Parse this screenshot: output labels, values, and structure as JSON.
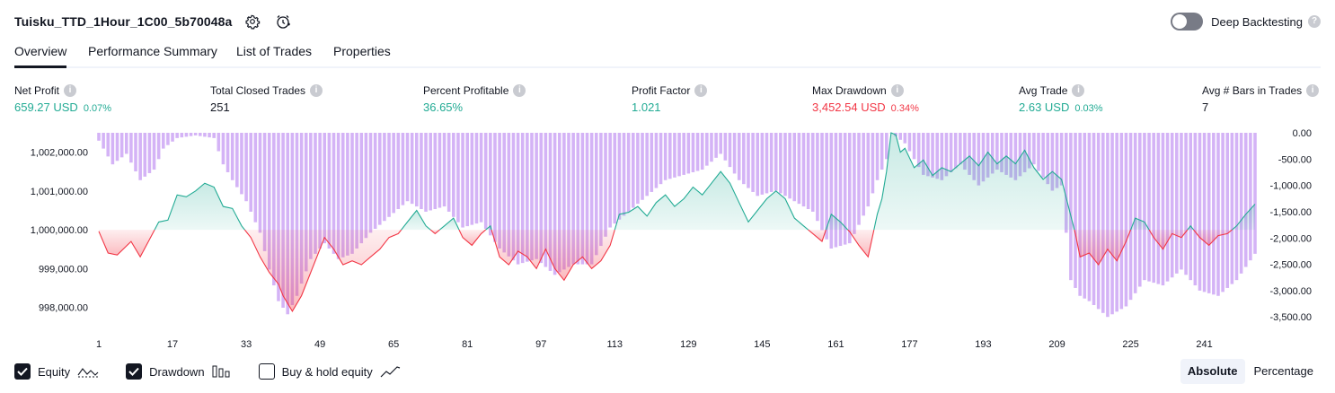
{
  "header": {
    "strategy_name": "Tuisku_TTD_1Hour_1C00_5b70048a",
    "deep_backtesting_label": "Deep Backtesting",
    "deep_backtesting_on": false,
    "icons": [
      "settings-icon",
      "alert-clock-icon",
      "help-icon"
    ]
  },
  "tabs": [
    {
      "label": "Overview",
      "active": true
    },
    {
      "label": "Performance Summary",
      "active": false
    },
    {
      "label": "List of Trades",
      "active": false
    },
    {
      "label": "Properties",
      "active": false
    }
  ],
  "metrics": [
    {
      "label": "Net Profit",
      "value": "659.27 USD",
      "pct": "0.07%",
      "color": "#22ab94"
    },
    {
      "label": "Total Closed Trades",
      "value": "251",
      "pct": "",
      "color": "#131722"
    },
    {
      "label": "Percent Profitable",
      "value": "36.65%",
      "pct": "",
      "color": "#22ab94"
    },
    {
      "label": "Profit Factor",
      "value": "1.021",
      "pct": "",
      "color": "#22ab94"
    },
    {
      "label": "Max Drawdown",
      "value": "3,452.54 USD",
      "pct": "0.34%",
      "color": "#f23645"
    },
    {
      "label": "Avg Trade",
      "value": "2.63 USD",
      "pct": "0.03%",
      "color": "#22ab94"
    },
    {
      "label": "Avg # Bars in Trades",
      "value": "7",
      "pct": "",
      "color": "#131722"
    }
  ],
  "chart_data": {
    "type": "line",
    "left_axis": {
      "ticks": [
        "1,002,000.00",
        "1,001,000.00",
        "1,000,000.00",
        "999,000.00",
        "998,000.00"
      ],
      "tick_values": [
        1002000,
        1001000,
        1000000,
        999000,
        998000
      ],
      "range": [
        997550,
        1002500
      ]
    },
    "right_axis": {
      "ticks": [
        "0.00",
        "-500.00",
        "-1,000.00",
        "-1,500.00",
        "-2,000.00",
        "-2,500.00",
        "-3,000.00",
        "-3,500.00"
      ],
      "tick_values": [
        0,
        -500,
        -1000,
        -1500,
        -2000,
        -2500,
        -3000,
        -3500
      ],
      "range": [
        -3650,
        0
      ]
    },
    "x_ticks": [
      1,
      17,
      33,
      49,
      65,
      81,
      97,
      113,
      129,
      145,
      161,
      177,
      193,
      209,
      225,
      241
    ],
    "x_range": [
      1,
      252
    ],
    "baseline": 1000000,
    "equity_keypoints": [
      [
        1,
        999960
      ],
      [
        3,
        999400
      ],
      [
        5,
        999350
      ],
      [
        8,
        999700
      ],
      [
        10,
        999300
      ],
      [
        12,
        999750
      ],
      [
        14,
        1000200
      ],
      [
        16,
        1000250
      ],
      [
        18,
        1000900
      ],
      [
        20,
        1000850
      ],
      [
        22,
        1001000
      ],
      [
        24,
        1001200
      ],
      [
        26,
        1001100
      ],
      [
        28,
        1000600
      ],
      [
        30,
        1000550
      ],
      [
        32,
        1000100
      ],
      [
        34,
        999800
      ],
      [
        36,
        999300
      ],
      [
        38,
        998900
      ],
      [
        40,
        998600
      ],
      [
        41,
        998300
      ],
      [
        42,
        998100
      ],
      [
        43,
        997900
      ],
      [
        45,
        998300
      ],
      [
        47,
        998900
      ],
      [
        49,
        999500
      ],
      [
        50,
        999800
      ],
      [
        52,
        999500
      ],
      [
        54,
        999100
      ],
      [
        56,
        999200
      ],
      [
        58,
        999100
      ],
      [
        60,
        999300
      ],
      [
        62,
        999500
      ],
      [
        64,
        999800
      ],
      [
        66,
        999900
      ],
      [
        68,
        1000200
      ],
      [
        70,
        1000500
      ],
      [
        72,
        1000100
      ],
      [
        74,
        999900
      ],
      [
        76,
        1000100
      ],
      [
        78,
        1000300
      ],
      [
        80,
        999800
      ],
      [
        82,
        999600
      ],
      [
        84,
        999900
      ],
      [
        86,
        1000100
      ],
      [
        88,
        999300
      ],
      [
        90,
        999100
      ],
      [
        92,
        999450
      ],
      [
        94,
        999300
      ],
      [
        96,
        999000
      ],
      [
        98,
        999500
      ],
      [
        100,
        999000
      ],
      [
        102,
        998700
      ],
      [
        104,
        999100
      ],
      [
        106,
        999300
      ],
      [
        108,
        999000
      ],
      [
        110,
        999200
      ],
      [
        112,
        999600
      ],
      [
        114,
        1000400
      ],
      [
        116,
        1000450
      ],
      [
        118,
        1000600
      ],
      [
        120,
        1000350
      ],
      [
        122,
        1000700
      ],
      [
        124,
        1000900
      ],
      [
        126,
        1000600
      ],
      [
        128,
        1000800
      ],
      [
        130,
        1001100
      ],
      [
        132,
        1000900
      ],
      [
        134,
        1001200
      ],
      [
        136,
        1001500
      ],
      [
        138,
        1001200
      ],
      [
        140,
        1000700
      ],
      [
        142,
        1000200
      ],
      [
        144,
        1000500
      ],
      [
        146,
        1000800
      ],
      [
        148,
        1001000
      ],
      [
        150,
        1000800
      ],
      [
        152,
        1000300
      ],
      [
        154,
        1000100
      ],
      [
        156,
        999900
      ],
      [
        158,
        999700
      ],
      [
        160,
        1000400
      ],
      [
        162,
        1000200
      ],
      [
        164,
        999950
      ],
      [
        166,
        999600
      ],
      [
        168,
        999300
      ],
      [
        169,
        999850
      ],
      [
        170,
        1000400
      ],
      [
        171,
        1000800
      ],
      [
        172,
        1001500
      ],
      [
        173,
        1002500
      ],
      [
        174,
        1002450
      ],
      [
        175,
        1002000
      ],
      [
        176,
        1002100
      ],
      [
        178,
        1001600
      ],
      [
        180,
        1001800
      ],
      [
        182,
        1001400
      ],
      [
        184,
        1001600
      ],
      [
        186,
        1001500
      ],
      [
        188,
        1001700
      ],
      [
        190,
        1001900
      ],
      [
        192,
        1001650
      ],
      [
        194,
        1002000
      ],
      [
        196,
        1001700
      ],
      [
        198,
        1001900
      ],
      [
        200,
        1001700
      ],
      [
        202,
        1002050
      ],
      [
        204,
        1001600
      ],
      [
        206,
        1001300
      ],
      [
        208,
        1001500
      ],
      [
        210,
        1001300
      ],
      [
        213,
        999900
      ],
      [
        214,
        999300
      ],
      [
        216,
        999400
      ],
      [
        218,
        999100
      ],
      [
        220,
        999500
      ],
      [
        222,
        999200
      ],
      [
        224,
        999700
      ],
      [
        226,
        1000300
      ],
      [
        228,
        1000200
      ],
      [
        230,
        999800
      ],
      [
        232,
        999500
      ],
      [
        234,
        999900
      ],
      [
        236,
        999800
      ],
      [
        238,
        1000100
      ],
      [
        240,
        999800
      ],
      [
        242,
        999600
      ],
      [
        244,
        999850
      ],
      [
        246,
        999900
      ],
      [
        248,
        1000100
      ],
      [
        250,
        1000400
      ],
      [
        252,
        1000660
      ]
    ],
    "drawdown_keypoints": [
      [
        1,
        -150
      ],
      [
        4,
        -600
      ],
      [
        7,
        -400
      ],
      [
        10,
        -900
      ],
      [
        13,
        -700
      ],
      [
        15,
        -300
      ],
      [
        18,
        -100
      ],
      [
        22,
        -50
      ],
      [
        26,
        -100
      ],
      [
        28,
        -600
      ],
      [
        30,
        -900
      ],
      [
        33,
        -1300
      ],
      [
        36,
        -1900
      ],
      [
        38,
        -2600
      ],
      [
        40,
        -3200
      ],
      [
        42,
        -3450
      ],
      [
        44,
        -3100
      ],
      [
        47,
        -2400
      ],
      [
        50,
        -2100
      ],
      [
        53,
        -2400
      ],
      [
        56,
        -2300
      ],
      [
        60,
        -1900
      ],
      [
        64,
        -1600
      ],
      [
        68,
        -1300
      ],
      [
        72,
        -1500
      ],
      [
        76,
        -1400
      ],
      [
        80,
        -1800
      ],
      [
        84,
        -1700
      ],
      [
        88,
        -2200
      ],
      [
        92,
        -2500
      ],
      [
        96,
        -2400
      ],
      [
        100,
        -2700
      ],
      [
        104,
        -2500
      ],
      [
        108,
        -2500
      ],
      [
        112,
        -1800
      ],
      [
        116,
        -1500
      ],
      [
        120,
        -1200
      ],
      [
        124,
        -900
      ],
      [
        128,
        -800
      ],
      [
        132,
        -700
      ],
      [
        136,
        -400
      ],
      [
        140,
        -900
      ],
      [
        144,
        -1200
      ],
      [
        148,
        -1100
      ],
      [
        152,
        -1300
      ],
      [
        156,
        -1500
      ],
      [
        160,
        -2200
      ],
      [
        164,
        -2100
      ],
      [
        168,
        -1400
      ],
      [
        170,
        -900
      ],
      [
        172,
        -500
      ],
      [
        173,
        0
      ],
      [
        176,
        -200
      ],
      [
        180,
        -800
      ],
      [
        184,
        -900
      ],
      [
        188,
        -600
      ],
      [
        192,
        -1000
      ],
      [
        196,
        -700
      ],
      [
        200,
        -900
      ],
      [
        204,
        -600
      ],
      [
        208,
        -1100
      ],
      [
        210,
        -1000
      ],
      [
        212,
        -2800
      ],
      [
        214,
        -3100
      ],
      [
        216,
        -3200
      ],
      [
        220,
        -3500
      ],
      [
        224,
        -3300
      ],
      [
        228,
        -2800
      ],
      [
        232,
        -2900
      ],
      [
        236,
        -2600
      ],
      [
        240,
        -3000
      ],
      [
        244,
        -3100
      ],
      [
        248,
        -2800
      ],
      [
        252,
        -2300
      ]
    ]
  },
  "legend": [
    {
      "label": "Equity",
      "checked": true,
      "icon": "equity-line-icon"
    },
    {
      "label": "Drawdown",
      "checked": true,
      "icon": "drawdown-bars-icon"
    },
    {
      "label": "Buy & hold equity",
      "checked": false,
      "icon": "buy-hold-line-icon"
    }
  ],
  "mode": {
    "absolute": "Absolute",
    "percentage": "Percentage",
    "active": "absolute"
  },
  "colors": {
    "equity_up": "#22ab94",
    "equity_down": "#f23645",
    "drawdown": "#c599f3",
    "text": "#131722"
  }
}
